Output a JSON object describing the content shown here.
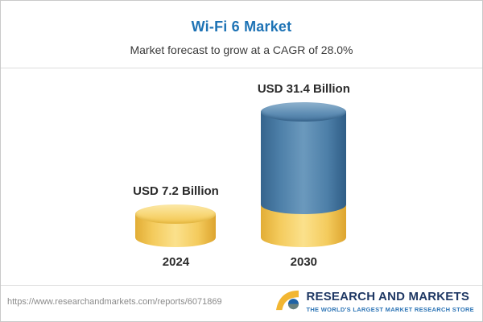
{
  "header": {
    "title": "Wi-Fi 6 Market",
    "subtitle": "Market forecast to grow at a CAGR of 28.0%"
  },
  "chart_data": {
    "type": "bar",
    "title": "Wi-Fi 6 Market",
    "subtitle": "Market forecast to grow at a CAGR of 28.0%",
    "categories": [
      "2024",
      "2030"
    ],
    "values": [
      7.2,
      31.4
    ],
    "value_labels": [
      "USD 7.2 Billion",
      "USD 31.4 Billion"
    ],
    "unit": "USD Billion",
    "cagr": "28.0%",
    "ylim": [
      0,
      31.4
    ],
    "grid": "off",
    "legend": "none",
    "colors": {
      "bar_2024": "#f4cb5d",
      "bar_2030_body": "#4d7fa8",
      "bar_2030_base": "#f4cb5d",
      "title_accent": "#1e73b5"
    }
  },
  "footer": {
    "url": "https://www.researchandmarkets.com/reports/6071869",
    "brand": "RESEARCH AND MARKETS",
    "tagline": "THE WORLD'S LARGEST MARKET RESEARCH STORE"
  }
}
